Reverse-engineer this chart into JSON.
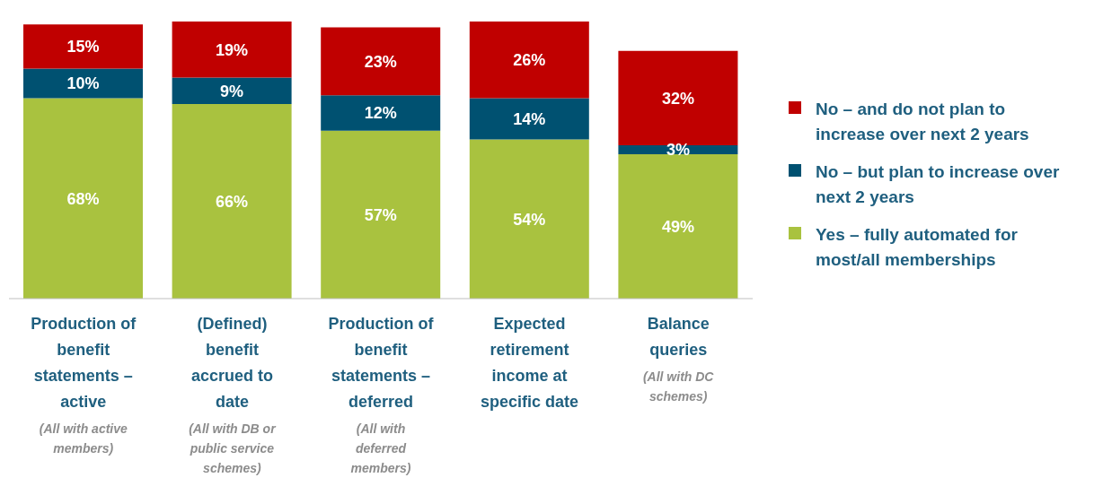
{
  "chart_data": {
    "type": "bar",
    "stacked": true,
    "legend": "right",
    "categories": [
      "Production of benefit statements – active (All with active members)",
      "(Defined) benefit accrued to date (All with DB or public service schemes)",
      "Production of benefit statements – deferred (All with deferred members)",
      "Expected retirement income at specific date",
      "Balance queries (All with DC schemes)"
    ],
    "series": [
      {
        "name": "Yes – fully automated for most/all memberships",
        "color": "#a9c23f",
        "values": [
          68,
          66,
          57,
          54,
          49
        ],
        "value_labels": [
          "68%",
          "66%",
          "57%",
          "54%",
          "49%"
        ]
      },
      {
        "name": "No – but plan to increase over next 2 years",
        "color": "#005171",
        "values": [
          10,
          9,
          12,
          14,
          3
        ],
        "value_labels": [
          "10%",
          "9%",
          "12%",
          "14%",
          "3%"
        ]
      },
      {
        "name": "No – and do not plan to increase over next 2 years",
        "color": "#c00000",
        "values": [
          15,
          19,
          23,
          26,
          32
        ],
        "value_labels": [
          "15%",
          "19%",
          "23%",
          "26%",
          "32%"
        ]
      }
    ]
  }
}
